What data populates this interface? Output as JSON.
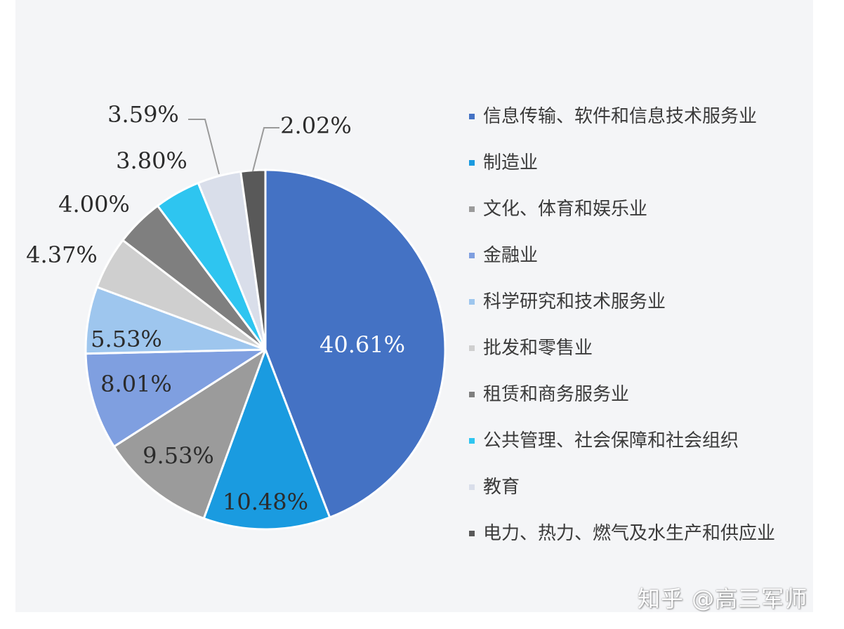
{
  "chart_data": {
    "type": "pie",
    "legend_position": "right",
    "slices": [
      {
        "label": "信息传输、软件和信息技术服务业",
        "value": 40.61,
        "value_label": "40.61%",
        "color": "#4472c4"
      },
      {
        "label": "制造业",
        "value": 10.48,
        "value_label": "10.48%",
        "color": "#1a9be0"
      },
      {
        "label": "文化、体育和娱乐业",
        "value": 9.53,
        "value_label": "9.53%",
        "color": "#9b9b9b"
      },
      {
        "label": "金融业",
        "value": 8.01,
        "value_label": "8.01%",
        "color": "#7f9fe0"
      },
      {
        "label": "科学研究和技术服务业",
        "value": 5.53,
        "value_label": "5.53%",
        "color": "#9ec6ee"
      },
      {
        "label": "批发和零售业",
        "value": 4.37,
        "value_label": "4.37%",
        "color": "#cfcfcf"
      },
      {
        "label": "租赁和商务服务业",
        "value": 4.0,
        "value_label": "4.00%",
        "color": "#7f7f7f"
      },
      {
        "label": "公共管理、社会保障和社会组织",
        "value": 3.8,
        "value_label": "3.80%",
        "color": "#2ec5f0"
      },
      {
        "label": "教育",
        "value": 3.59,
        "value_label": "3.59%",
        "color": "#d9deea"
      },
      {
        "label": "电力、热力、燃气及水生产和供应业",
        "value": 2.02,
        "value_label": "2.02%",
        "color": "#595959"
      }
    ]
  },
  "watermark": "知乎 @高三军师"
}
